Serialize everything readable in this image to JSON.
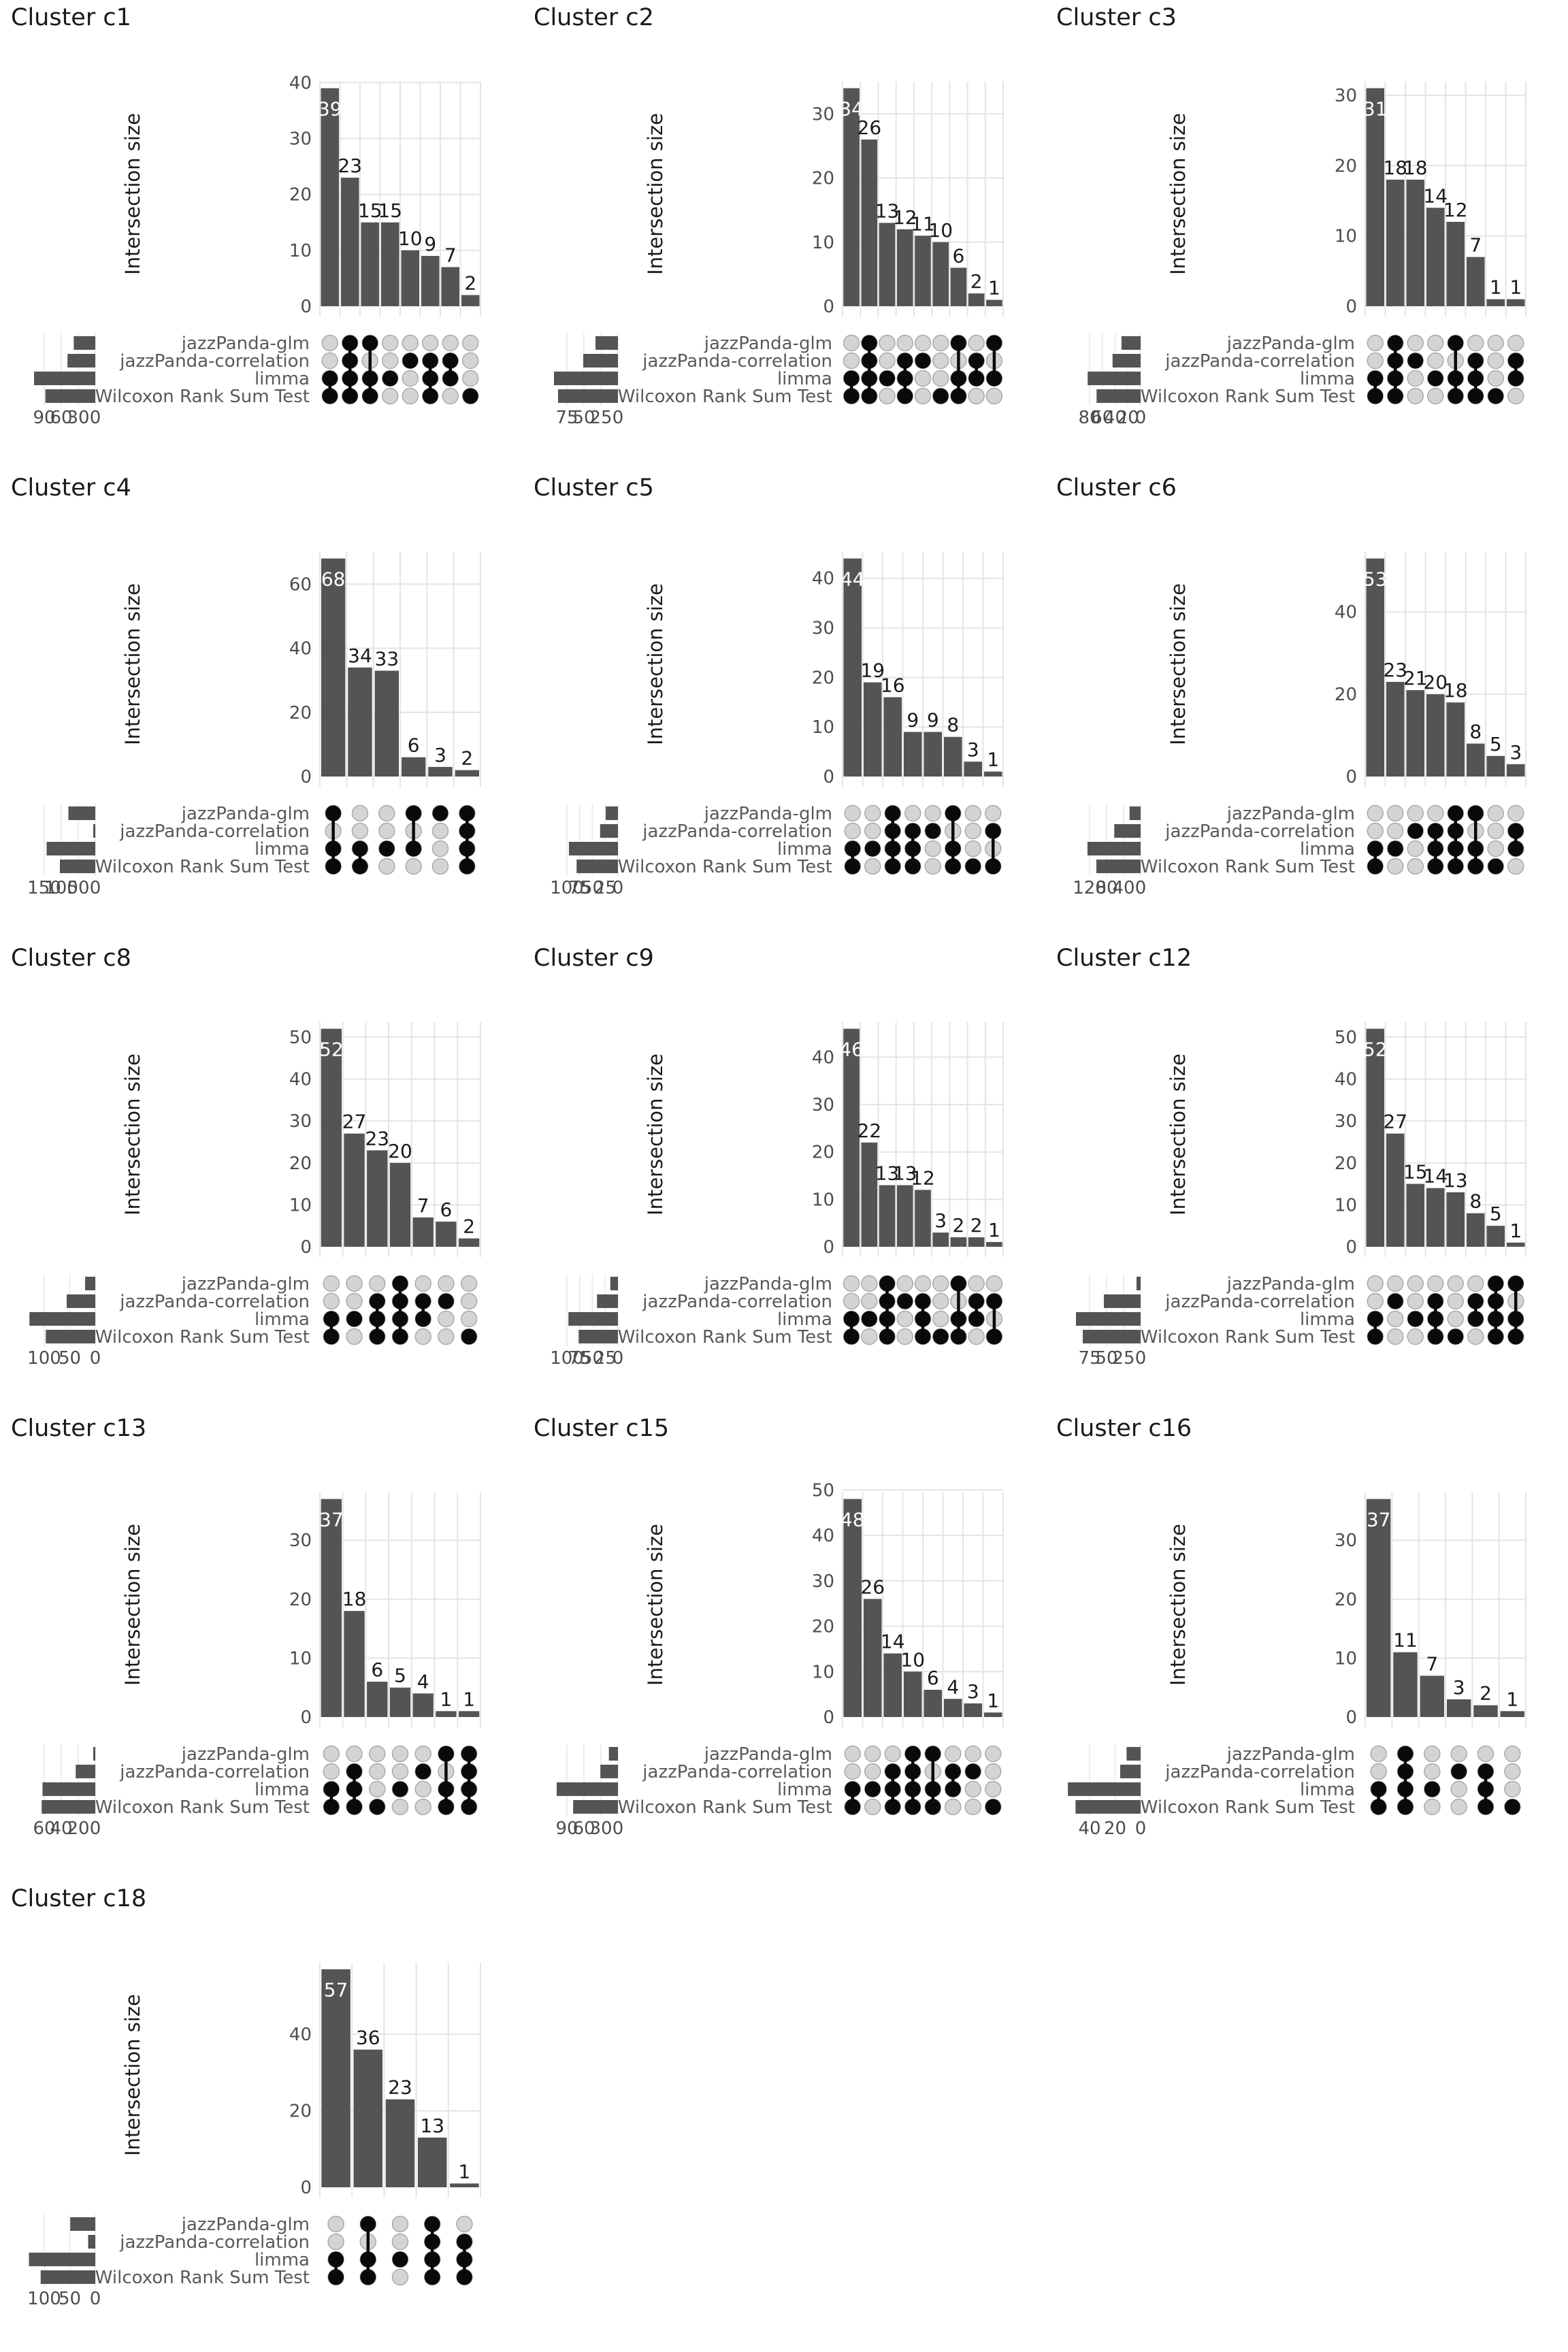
{
  "sets": [
    "jazzPanda-glm",
    "jazzPanda-correlation",
    "limma",
    "Wilcoxon Rank Sum Test"
  ],
  "style": {
    "bar_color": "#545454",
    "set_size_bar_color": "#545454",
    "dot_active_color": "#0a0a0a",
    "dot_inactive_color": "#d4d4d4",
    "dot_inactive_stroke": "#aaaaaa",
    "grid_color": "#e4e4e4",
    "tick_label_color": "#4d4d4d",
    "matrix_label_color": "#595959",
    "value_label_color": "#1a1a1a",
    "first_value_label_color": "#ffffff",
    "title_color": "#1a1a1a"
  },
  "chart_data": [
    {
      "type": "bar",
      "subtype": "upset",
      "title": "Cluster c1",
      "ylabel": "Intersection size",
      "yticks": [
        0,
        10,
        20,
        30,
        40
      ],
      "set_size_ticks": [
        90,
        60,
        30,
        0
      ],
      "set_sizes": [
        38,
        49,
        108,
        88
      ],
      "intersections": [
        {
          "members": [
            "limma",
            "Wilcoxon Rank Sum Test"
          ],
          "size": 39
        },
        {
          "members": [
            "jazzPanda-glm",
            "jazzPanda-correlation",
            "limma",
            "Wilcoxon Rank Sum Test"
          ],
          "size": 23
        },
        {
          "members": [
            "jazzPanda-glm",
            "limma",
            "Wilcoxon Rank Sum Test"
          ],
          "size": 15
        },
        {
          "members": [
            "limma"
          ],
          "size": 15
        },
        {
          "members": [
            "jazzPanda-correlation"
          ],
          "size": 10
        },
        {
          "members": [
            "jazzPanda-correlation",
            "limma",
            "Wilcoxon Rank Sum Test"
          ],
          "size": 9
        },
        {
          "members": [
            "jazzPanda-correlation",
            "limma"
          ],
          "size": 7
        },
        {
          "members": [
            "Wilcoxon Rank Sum Test"
          ],
          "size": 2
        }
      ]
    },
    {
      "type": "bar",
      "subtype": "upset",
      "title": "Cluster c2",
      "ylabel": "Intersection size",
      "yticks": [
        0,
        10,
        20,
        30
      ],
      "set_size_ticks": [
        75,
        50,
        25,
        0
      ],
      "set_sizes": [
        33,
        51,
        94,
        88
      ],
      "intersections": [
        {
          "members": [
            "limma",
            "Wilcoxon Rank Sum Test"
          ],
          "size": 34
        },
        {
          "members": [
            "jazzPanda-glm",
            "jazzPanda-correlation",
            "limma",
            "Wilcoxon Rank Sum Test"
          ],
          "size": 26
        },
        {
          "members": [
            "limma"
          ],
          "size": 13
        },
        {
          "members": [
            "jazzPanda-correlation",
            "limma",
            "Wilcoxon Rank Sum Test"
          ],
          "size": 12
        },
        {
          "members": [
            "jazzPanda-correlation"
          ],
          "size": 11
        },
        {
          "members": [
            "Wilcoxon Rank Sum Test"
          ],
          "size": 10
        },
        {
          "members": [
            "jazzPanda-glm",
            "limma",
            "Wilcoxon Rank Sum Test"
          ],
          "size": 6
        },
        {
          "members": [
            "jazzPanda-correlation",
            "limma"
          ],
          "size": 2
        },
        {
          "members": [
            "jazzPanda-glm",
            "limma"
          ],
          "size": 1
        }
      ]
    },
    {
      "type": "bar",
      "subtype": "upset",
      "title": "Cluster c3",
      "ylabel": "Intersection size",
      "yticks": [
        0,
        10,
        20,
        30
      ],
      "set_size_ticks": [
        80,
        60,
        40,
        20,
        0
      ],
      "set_sizes": [
        30,
        44,
        83,
        69
      ],
      "intersections": [
        {
          "members": [
            "limma",
            "Wilcoxon Rank Sum Test"
          ],
          "size": 31
        },
        {
          "members": [
            "jazzPanda-glm",
            "jazzPanda-correlation",
            "limma",
            "Wilcoxon Rank Sum Test"
          ],
          "size": 18
        },
        {
          "members": [
            "jazzPanda-correlation"
          ],
          "size": 18
        },
        {
          "members": [
            "limma"
          ],
          "size": 14
        },
        {
          "members": [
            "jazzPanda-glm",
            "limma",
            "Wilcoxon Rank Sum Test"
          ],
          "size": 12
        },
        {
          "members": [
            "jazzPanda-correlation",
            "limma",
            "Wilcoxon Rank Sum Test"
          ],
          "size": 7
        },
        {
          "members": [
            "Wilcoxon Rank Sum Test"
          ],
          "size": 1
        },
        {
          "members": [
            "jazzPanda-correlation",
            "limma"
          ],
          "size": 1
        }
      ]
    },
    {
      "type": "bar",
      "subtype": "upset",
      "title": "Cluster c4",
      "ylabel": "Intersection size",
      "yticks": [
        0,
        20,
        40,
        60
      ],
      "set_size_ticks": [
        150,
        100,
        50,
        0
      ],
      "set_sizes": [
        79,
        2,
        143,
        104
      ],
      "intersections": [
        {
          "members": [
            "jazzPanda-glm",
            "limma",
            "Wilcoxon Rank Sum Test"
          ],
          "size": 68
        },
        {
          "members": [
            "limma",
            "Wilcoxon Rank Sum Test"
          ],
          "size": 34
        },
        {
          "members": [
            "limma"
          ],
          "size": 33
        },
        {
          "members": [
            "jazzPanda-glm",
            "limma"
          ],
          "size": 6
        },
        {
          "members": [
            "jazzPanda-glm"
          ],
          "size": 3
        },
        {
          "members": [
            "jazzPanda-glm",
            "jazzPanda-correlation",
            "limma",
            "Wilcoxon Rank Sum Test"
          ],
          "size": 2
        }
      ]
    },
    {
      "type": "bar",
      "subtype": "upset",
      "title": "Cluster c5",
      "ylabel": "Intersection size",
      "yticks": [
        0,
        10,
        20,
        30,
        40
      ],
      "set_size_ticks": [
        100,
        75,
        50,
        25,
        0
      ],
      "set_sizes": [
        24,
        35,
        96,
        81
      ],
      "intersections": [
        {
          "members": [
            "limma",
            "Wilcoxon Rank Sum Test"
          ],
          "size": 44
        },
        {
          "members": [
            "limma"
          ],
          "size": 19
        },
        {
          "members": [
            "jazzPanda-glm",
            "jazzPanda-correlation",
            "limma",
            "Wilcoxon Rank Sum Test"
          ],
          "size": 16
        },
        {
          "members": [
            "jazzPanda-correlation",
            "limma",
            "Wilcoxon Rank Sum Test"
          ],
          "size": 9
        },
        {
          "members": [
            "jazzPanda-correlation"
          ],
          "size": 9
        },
        {
          "members": [
            "jazzPanda-glm",
            "limma",
            "Wilcoxon Rank Sum Test"
          ],
          "size": 8
        },
        {
          "members": [
            "Wilcoxon Rank Sum Test"
          ],
          "size": 3
        },
        {
          "members": [
            "jazzPanda-correlation",
            "Wilcoxon Rank Sum Test"
          ],
          "size": 1
        }
      ]
    },
    {
      "type": "bar",
      "subtype": "upset",
      "title": "Cluster c6",
      "ylabel": "Intersection size",
      "yticks": [
        0,
        20,
        40
      ],
      "set_size_ticks": [
        120,
        80,
        40,
        0
      ],
      "set_sizes": [
        26,
        62,
        125,
        104
      ],
      "intersections": [
        {
          "members": [
            "limma",
            "Wilcoxon Rank Sum Test"
          ],
          "size": 53
        },
        {
          "members": [
            "limma"
          ],
          "size": 23
        },
        {
          "members": [
            "jazzPanda-correlation"
          ],
          "size": 21
        },
        {
          "members": [
            "jazzPanda-correlation",
            "limma",
            "Wilcoxon Rank Sum Test"
          ],
          "size": 20
        },
        {
          "members": [
            "jazzPanda-glm",
            "jazzPanda-correlation",
            "limma",
            "Wilcoxon Rank Sum Test"
          ],
          "size": 18
        },
        {
          "members": [
            "jazzPanda-glm",
            "limma",
            "Wilcoxon Rank Sum Test"
          ],
          "size": 8
        },
        {
          "members": [
            "Wilcoxon Rank Sum Test"
          ],
          "size": 5
        },
        {
          "members": [
            "jazzPanda-correlation",
            "limma"
          ],
          "size": 3
        }
      ]
    },
    {
      "type": "bar",
      "subtype": "upset",
      "title": "Cluster c8",
      "ylabel": "Intersection size",
      "yticks": [
        0,
        10,
        20,
        30,
        40,
        50
      ],
      "set_size_ticks": [
        100,
        50,
        0
      ],
      "set_sizes": [
        20,
        56,
        129,
        97
      ],
      "intersections": [
        {
          "members": [
            "limma",
            "Wilcoxon Rank Sum Test"
          ],
          "size": 52
        },
        {
          "members": [
            "limma"
          ],
          "size": 27
        },
        {
          "members": [
            "jazzPanda-correlation",
            "limma",
            "Wilcoxon Rank Sum Test"
          ],
          "size": 23
        },
        {
          "members": [
            "jazzPanda-glm",
            "jazzPanda-correlation",
            "limma",
            "Wilcoxon Rank Sum Test"
          ],
          "size": 20
        },
        {
          "members": [
            "jazzPanda-correlation",
            "limma"
          ],
          "size": 7
        },
        {
          "members": [
            "jazzPanda-correlation"
          ],
          "size": 6
        },
        {
          "members": [
            "Wilcoxon Rank Sum Test"
          ],
          "size": 2
        }
      ]
    },
    {
      "type": "bar",
      "subtype": "upset",
      "title": "Cluster c9",
      "ylabel": "Intersection size",
      "yticks": [
        0,
        10,
        20,
        30,
        40
      ],
      "set_size_ticks": [
        100,
        75,
        50,
        25,
        0
      ],
      "set_sizes": [
        15,
        41,
        97,
        77
      ],
      "intersections": [
        {
          "members": [
            "limma",
            "Wilcoxon Rank Sum Test"
          ],
          "size": 46
        },
        {
          "members": [
            "limma"
          ],
          "size": 22
        },
        {
          "members": [
            "jazzPanda-glm",
            "jazzPanda-correlation",
            "limma",
            "Wilcoxon Rank Sum Test"
          ],
          "size": 13
        },
        {
          "members": [
            "jazzPanda-correlation"
          ],
          "size": 13
        },
        {
          "members": [
            "jazzPanda-correlation",
            "limma",
            "Wilcoxon Rank Sum Test"
          ],
          "size": 12
        },
        {
          "members": [
            "Wilcoxon Rank Sum Test"
          ],
          "size": 3
        },
        {
          "members": [
            "jazzPanda-glm",
            "limma",
            "Wilcoxon Rank Sum Test"
          ],
          "size": 2
        },
        {
          "members": [
            "jazzPanda-correlation",
            "limma"
          ],
          "size": 2
        },
        {
          "members": [
            "jazzPanda-correlation",
            "Wilcoxon Rank Sum Test"
          ],
          "size": 1
        }
      ]
    },
    {
      "type": "bar",
      "subtype": "upset",
      "title": "Cluster c12",
      "ylabel": "Intersection size",
      "yticks": [
        0,
        10,
        20,
        30,
        40,
        50
      ],
      "set_size_ticks": [
        75,
        50,
        25,
        0
      ],
      "set_sizes": [
        6,
        54,
        95,
        85
      ],
      "intersections": [
        {
          "members": [
            "limma",
            "Wilcoxon Rank Sum Test"
          ],
          "size": 52
        },
        {
          "members": [
            "jazzPanda-correlation"
          ],
          "size": 27
        },
        {
          "members": [
            "limma"
          ],
          "size": 15
        },
        {
          "members": [
            "jazzPanda-correlation",
            "limma",
            "Wilcoxon Rank Sum Test"
          ],
          "size": 14
        },
        {
          "members": [
            "Wilcoxon Rank Sum Test"
          ],
          "size": 13
        },
        {
          "members": [
            "jazzPanda-correlation",
            "limma"
          ],
          "size": 8
        },
        {
          "members": [
            "jazzPanda-glm",
            "jazzPanda-correlation",
            "limma",
            "Wilcoxon Rank Sum Test"
          ],
          "size": 5
        },
        {
          "members": [
            "jazzPanda-glm",
            "limma",
            "Wilcoxon Rank Sum Test"
          ],
          "size": 1
        }
      ]
    },
    {
      "type": "bar",
      "subtype": "upset",
      "title": "Cluster c13",
      "ylabel": "Intersection size",
      "yticks": [
        0,
        10,
        20,
        30
      ],
      "set_size_ticks": [
        60,
        40,
        20,
        0
      ],
      "set_sizes": [
        2,
        23,
        62,
        63
      ],
      "intersections": [
        {
          "members": [
            "limma",
            "Wilcoxon Rank Sum Test"
          ],
          "size": 37
        },
        {
          "members": [
            "jazzPanda-correlation",
            "limma",
            "Wilcoxon Rank Sum Test"
          ],
          "size": 18
        },
        {
          "members": [
            "Wilcoxon Rank Sum Test"
          ],
          "size": 6
        },
        {
          "members": [
            "limma"
          ],
          "size": 5
        },
        {
          "members": [
            "jazzPanda-correlation"
          ],
          "size": 4
        },
        {
          "members": [
            "jazzPanda-glm",
            "limma",
            "Wilcoxon Rank Sum Test"
          ],
          "size": 1
        },
        {
          "members": [
            "jazzPanda-glm",
            "jazzPanda-correlation",
            "limma",
            "Wilcoxon Rank Sum Test"
          ],
          "size": 1
        }
      ]
    },
    {
      "type": "bar",
      "subtype": "upset",
      "title": "Cluster c15",
      "ylabel": "Intersection size",
      "yticks": [
        0,
        10,
        20,
        30,
        40,
        50
      ],
      "set_size_ticks": [
        90,
        60,
        30,
        0
      ],
      "set_sizes": [
        16,
        31,
        108,
        79
      ],
      "intersections": [
        {
          "members": [
            "limma",
            "Wilcoxon Rank Sum Test"
          ],
          "size": 48
        },
        {
          "members": [
            "limma"
          ],
          "size": 26
        },
        {
          "members": [
            "jazzPanda-correlation",
            "limma",
            "Wilcoxon Rank Sum Test"
          ],
          "size": 14
        },
        {
          "members": [
            "jazzPanda-glm",
            "jazzPanda-correlation",
            "limma",
            "Wilcoxon Rank Sum Test"
          ],
          "size": 10
        },
        {
          "members": [
            "jazzPanda-glm",
            "limma",
            "Wilcoxon Rank Sum Test"
          ],
          "size": 6
        },
        {
          "members": [
            "jazzPanda-correlation",
            "limma"
          ],
          "size": 4
        },
        {
          "members": [
            "jazzPanda-correlation"
          ],
          "size": 3
        },
        {
          "members": [
            "Wilcoxon Rank Sum Test"
          ],
          "size": 1
        }
      ]
    },
    {
      "type": "bar",
      "subtype": "upset",
      "title": "Cluster c16",
      "ylabel": "Intersection size",
      "yticks": [
        0,
        10,
        20,
        30
      ],
      "set_size_ticks": [
        40,
        20,
        0
      ],
      "set_sizes": [
        11,
        16,
        57,
        51
      ],
      "intersections": [
        {
          "members": [
            "limma",
            "Wilcoxon Rank Sum Test"
          ],
          "size": 37
        },
        {
          "members": [
            "jazzPanda-glm",
            "jazzPanda-correlation",
            "limma",
            "Wilcoxon Rank Sum Test"
          ],
          "size": 11
        },
        {
          "members": [
            "limma"
          ],
          "size": 7
        },
        {
          "members": [
            "jazzPanda-correlation"
          ],
          "size": 3
        },
        {
          "members": [
            "jazzPanda-correlation",
            "limma",
            "Wilcoxon Rank Sum Test"
          ],
          "size": 2
        },
        {
          "members": [
            "Wilcoxon Rank Sum Test"
          ],
          "size": 1
        }
      ]
    },
    {
      "type": "bar",
      "subtype": "upset",
      "title": "Cluster c18",
      "ylabel": "Intersection size",
      "yticks": [
        0,
        20,
        40
      ],
      "set_size_ticks": [
        100,
        50,
        0
      ],
      "set_sizes": [
        49,
        14,
        130,
        107
      ],
      "intersections": [
        {
          "members": [
            "limma",
            "Wilcoxon Rank Sum Test"
          ],
          "size": 57
        },
        {
          "members": [
            "jazzPanda-glm",
            "limma",
            "Wilcoxon Rank Sum Test"
          ],
          "size": 36
        },
        {
          "members": [
            "limma"
          ],
          "size": 23
        },
        {
          "members": [
            "jazzPanda-glm",
            "jazzPanda-correlation",
            "limma",
            "Wilcoxon Rank Sum Test"
          ],
          "size": 13
        },
        {
          "members": [
            "jazzPanda-correlation",
            "limma",
            "Wilcoxon Rank Sum Test"
          ],
          "size": 1
        }
      ]
    }
  ]
}
